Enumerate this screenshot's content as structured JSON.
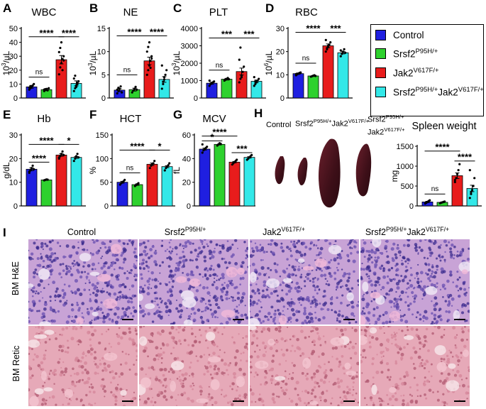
{
  "colors": {
    "control": "#1f1fe0",
    "srsf2": "#2ed12e",
    "jak2": "#e81c1c",
    "double": "#33e8e8"
  },
  "legend": [
    {
      "key": "control",
      "base": "Control",
      "sup": ""
    },
    {
      "key": "srsf2",
      "base": "Srsf2",
      "sup": "P95H/+"
    },
    {
      "key": "jak2",
      "base": "Jak2",
      "sup": "V617F/+"
    },
    {
      "key": "double",
      "base": "Srsf2",
      "sup": "P95H/+",
      "base2": "Jak2",
      "sup2": "V617F/+"
    }
  ],
  "chart_data": [
    {
      "id": "wbc",
      "panel": "A",
      "title": "WBC",
      "type": "bar",
      "ylabel_base": "10",
      "ylabel_sup": "3",
      "ylabel_rest": "/µL",
      "ylim": [
        0,
        50
      ],
      "yticks": [
        0,
        10,
        20,
        30,
        40,
        50
      ],
      "categories": [
        "Control",
        "Srsf2P95H/+",
        "Jak2V617F/+",
        "Srsf2P95H/+Jak2V617F/+"
      ],
      "values": [
        8,
        6,
        27.5,
        10.5
      ],
      "errors": [
        1,
        0.8,
        3,
        1.8
      ],
      "points": [
        [
          6,
          7,
          8,
          9,
          10,
          7.5,
          8.5
        ],
        [
          5,
          6,
          6.5,
          5.5,
          7,
          6
        ],
        [
          17,
          22,
          25,
          28,
          30,
          33,
          36,
          40,
          20,
          27
        ],
        [
          5,
          7,
          9,
          10,
          12,
          14,
          16,
          8,
          11
        ]
      ],
      "sig": [
        {
          "from": 0,
          "to": 1,
          "label": "ns",
          "y": 15
        },
        {
          "from": 0,
          "to": 2,
          "label": "****",
          "y": 44
        },
        {
          "from": 2,
          "to": 3,
          "label": "****",
          "y": 44
        }
      ]
    },
    {
      "id": "ne",
      "panel": "B",
      "title": "NE",
      "type": "bar",
      "ylabel_base": "10",
      "ylabel_sup": "3",
      "ylabel_rest": "/µL",
      "ylim": [
        0,
        15
      ],
      "yticks": [
        0,
        5,
        10,
        15
      ],
      "categories": [
        "Control",
        "Srsf2P95H/+",
        "Jak2V617F/+",
        "Srsf2P95H/+Jak2V617F/+"
      ],
      "values": [
        1.7,
        1.8,
        8,
        4
      ],
      "errors": [
        0.3,
        0.3,
        0.8,
        0.6
      ],
      "points": [
        [
          1,
          1.5,
          2,
          2.5,
          1.2,
          1.8,
          2.2
        ],
        [
          1.2,
          1.6,
          2,
          2.4,
          1.8
        ],
        [
          5,
          6,
          7,
          8,
          9,
          10,
          11,
          12,
          6.5,
          8.5
        ],
        [
          2,
          3,
          4,
          5,
          6,
          7,
          3.5,
          4.5
        ]
      ],
      "sig": [
        {
          "from": 0,
          "to": 1,
          "label": "ns",
          "y": 5
        },
        {
          "from": 0,
          "to": 2,
          "label": "****",
          "y": 13.4
        },
        {
          "from": 2,
          "to": 3,
          "label": "****",
          "y": 13.4
        }
      ]
    },
    {
      "id": "plt",
      "panel": "C",
      "title": "PLT",
      "type": "bar",
      "ylabel_base": "10",
      "ylabel_sup": "3",
      "ylabel_rest": "/µL",
      "ylim": [
        0,
        4000
      ],
      "yticks": [
        0,
        1000,
        2000,
        3000,
        4000
      ],
      "categories": [
        "Control",
        "Srsf2P95H/+",
        "Jak2V617F/+",
        "Srsf2P95H/+Jak2V617F/+"
      ],
      "values": [
        850,
        1080,
        1520,
        960
      ],
      "errors": [
        60,
        50,
        200,
        70
      ],
      "points": [
        [
          700,
          800,
          850,
          900,
          950,
          1000
        ],
        [
          1000,
          1050,
          1100,
          1150,
          1080
        ],
        [
          900,
          1100,
          1300,
          1500,
          1800,
          2200,
          2900,
          1200
        ],
        [
          700,
          800,
          900,
          1000,
          1100,
          1200,
          950
        ]
      ],
      "sig": [
        {
          "from": 0,
          "to": 1,
          "label": "ns",
          "y": 1600
        },
        {
          "from": 0,
          "to": 2,
          "label": "***",
          "y": 3450
        },
        {
          "from": 2,
          "to": 3,
          "label": "***",
          "y": 3450
        }
      ]
    },
    {
      "id": "rbc",
      "panel": "D",
      "title": "RBC",
      "type": "bar",
      "ylabel_base": "10",
      "ylabel_sup": "6",
      "ylabel_rest": "/µL",
      "ylim": [
        0,
        30
      ],
      "yticks": [
        0,
        10,
        20,
        30
      ],
      "categories": [
        "Control",
        "Srsf2P95H/+",
        "Jak2V617F/+",
        "Srsf2P95H/+Jak2V617F/+"
      ],
      "values": [
        10.5,
        9.5,
        22.5,
        19.5
      ],
      "errors": [
        0.3,
        0.2,
        0.8,
        0.5
      ],
      "points": [
        [
          9.8,
          10.2,
          10.5,
          10.8,
          11,
          10.3
        ],
        [
          9.2,
          9.4,
          9.6,
          9.8,
          9.5
        ],
        [
          20,
          21,
          22,
          23,
          24,
          25,
          21.5,
          22.5
        ],
        [
          18,
          19,
          20,
          21,
          19.5,
          20.5
        ]
      ],
      "sig": [
        {
          "from": 0,
          "to": 1,
          "label": "ns",
          "y": 15
        },
        {
          "from": 0,
          "to": 2,
          "label": "****",
          "y": 28.3
        },
        {
          "from": 2,
          "to": 3,
          "label": "***",
          "y": 28.3
        }
      ]
    },
    {
      "id": "hb",
      "panel": "E",
      "title": "Hb",
      "type": "bar",
      "ylabel_base": "g/dL",
      "ylabel_sup": "",
      "ylabel_rest": "",
      "ylim": [
        0,
        30
      ],
      "yticks": [
        0,
        10,
        20,
        30
      ],
      "categories": [
        "Control",
        "Srsf2P95H/+",
        "Jak2V617F/+",
        "Srsf2P95H/+Jak2V617F/+"
      ],
      "values": [
        15.5,
        11,
        21.5,
        20.5
      ],
      "errors": [
        0.6,
        0.2,
        0.5,
        0.4
      ],
      "points": [
        [
          14,
          15,
          16,
          17,
          15.5,
          14.5
        ],
        [
          10.8,
          11,
          11.2,
          11.1
        ],
        [
          20,
          21,
          22,
          23,
          21.5,
          20.5
        ],
        [
          19,
          20,
          21,
          22,
          20.5
        ]
      ],
      "sig": [
        {
          "from": 0,
          "to": 1,
          "label": "****",
          "y": 18.5
        },
        {
          "from": 0,
          "to": 2,
          "label": "****",
          "y": 26
        },
        {
          "from": 2,
          "to": 3,
          "label": "*",
          "y": 26
        }
      ]
    },
    {
      "id": "hct",
      "panel": "F",
      "title": "HCT",
      "type": "bar",
      "ylabel_base": "%",
      "ylabel_sup": "",
      "ylabel_rest": "",
      "ylim": [
        0,
        150
      ],
      "yticks": [
        0,
        50,
        100,
        150
      ],
      "categories": [
        "Control",
        "Srsf2P95H/+",
        "Jak2V617F/+",
        "Srsf2P95H/+Jak2V617F/+"
      ],
      "values": [
        50,
        45,
        88,
        83
      ],
      "errors": [
        2,
        1.5,
        2.5,
        2
      ],
      "points": [
        [
          45,
          48,
          50,
          52,
          55
        ],
        [
          42,
          44,
          46,
          48
        ],
        [
          80,
          85,
          88,
          90,
          95
        ],
        [
          75,
          80,
          83,
          86,
          90
        ]
      ],
      "sig": [
        {
          "from": 0,
          "to": 1,
          "label": "ns",
          "y": 70
        },
        {
          "from": 0,
          "to": 2,
          "label": "****",
          "y": 118
        },
        {
          "from": 2,
          "to": 3,
          "label": "*",
          "y": 118
        }
      ]
    },
    {
      "id": "mcv",
      "panel": "G",
      "title": "MCV",
      "type": "bar",
      "ylabel_base": "fL",
      "ylabel_sup": "",
      "ylabel_rest": "",
      "ylim": [
        0,
        60
      ],
      "yticks": [
        0,
        20,
        40,
        60
      ],
      "categories": [
        "Control",
        "Srsf2P95H/+",
        "Jak2V617F/+",
        "Srsf2P95H/+Jak2V617F/+"
      ],
      "values": [
        48,
        52,
        37,
        41
      ],
      "errors": [
        0.8,
        0.5,
        0.6,
        0.6
      ],
      "points": [
        [
          45,
          47,
          48,
          49,
          50,
          52
        ],
        [
          51,
          52,
          53,
          52.5
        ],
        [
          35,
          36,
          37,
          38,
          39
        ],
        [
          39,
          40,
          41,
          42,
          43
        ]
      ],
      "sig": [
        {
          "from": 0,
          "to": 1,
          "label": "*",
          "y": 55
        },
        {
          "from": 0,
          "to": 2,
          "label": "****",
          "y": 59
        },
        {
          "from": 2,
          "to": 3,
          "label": "***",
          "y": 45
        }
      ]
    },
    {
      "id": "spleen",
      "panel": "H",
      "title": "Spleen weight",
      "type": "bar",
      "ylabel_base": "mg",
      "ylabel_sup": "",
      "ylabel_rest": "",
      "ylim": [
        0,
        1500
      ],
      "yticks": [
        0,
        500,
        1000,
        1500
      ],
      "categories": [
        "Control",
        "Srsf2P95H/+",
        "Jak2V617F/+",
        "Srsf2P95H/+Jak2V617F/+"
      ],
      "values": [
        100,
        90,
        760,
        440
      ],
      "errors": [
        15,
        10,
        70,
        80
      ],
      "points": [
        [
          60,
          80,
          100,
          120,
          140
        ],
        [
          70,
          80,
          90,
          100,
          110
        ],
        [
          600,
          700,
          800,
          900,
          1050,
          650
        ],
        [
          200,
          300,
          400,
          500,
          700,
          900,
          350
        ]
      ],
      "sig": [
        {
          "from": 0,
          "to": 1,
          "label": "ns",
          "y": 300
        },
        {
          "from": 0,
          "to": 2,
          "label": "****",
          "y": 1380
        },
        {
          "from": 2,
          "to": 3,
          "label": "****",
          "y": 1130
        }
      ]
    }
  ],
  "spleen_photo": {
    "labels": [
      {
        "base": "Control",
        "sup": ""
      },
      {
        "base": "Srsf2",
        "sup": "P95H/+"
      },
      {
        "base": "Jak2",
        "sup": "V617F/+"
      },
      {
        "base": "Srsf2",
        "sup": "P95H/+",
        "base2": "Jak2",
        "sup2": "V617F/+"
      }
    ]
  },
  "histology": {
    "panel": "I",
    "columns": [
      {
        "base": "Control",
        "sup": ""
      },
      {
        "base": "Srsf2",
        "sup": "P95H/+"
      },
      {
        "base": "Jak2",
        "sup": "V617F/+"
      },
      {
        "base": "Srsf2",
        "sup": "P95H/+",
        "base2": "Jak2",
        "sup2": "V617F/+"
      }
    ],
    "rows": [
      "BM H&E",
      "BM Retic"
    ]
  }
}
